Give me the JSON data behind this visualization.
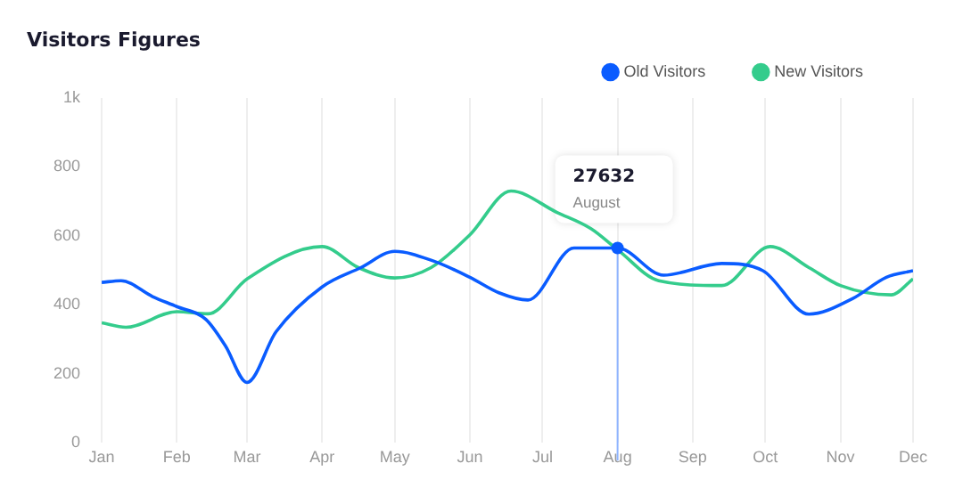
{
  "chart_data": {
    "type": "line",
    "title": "Visitors Figures",
    "xlim": [
      "--01-01",
      "--12-01"
    ],
    "xticks": [
      {
        "value": "--01-01",
        "label": "Jan"
      },
      {
        "value": "--02-01",
        "label": "Feb"
      },
      {
        "value": "--03-01",
        "label": "Mar"
      },
      {
        "value": "--04-01",
        "label": "Apr"
      },
      {
        "value": "--05-01",
        "label": "May"
      },
      {
        "value": "--06-01",
        "label": "Jun"
      },
      {
        "value": "--07-01",
        "label": "Jul"
      },
      {
        "value": "--08-01",
        "label": "Aug"
      },
      {
        "value": "--09-01",
        "label": "Sep"
      },
      {
        "value": "--10-01",
        "label": "Oct"
      },
      {
        "value": "--11-01",
        "label": "Nov"
      },
      {
        "value": "--12-01",
        "label": "Dec"
      }
    ],
    "ylim": [
      0,
      1000
    ],
    "yticks": [
      0,
      200,
      400,
      600,
      800,
      {
        "value": 1000,
        "label": "1k"
      }
    ],
    "series": [
      {
        "name": "Old Visitors",
        "color": "#0a5cff",
        "x": [
          "--01-01",
          "--01-09",
          "--01-22",
          "--02-01",
          "--02-13",
          "--02-21",
          "--03-01",
          "--03-13",
          "--04-01",
          "--04-17",
          "--05-01",
          "--05-17",
          "--06-01",
          "--06-13",
          "--06-25",
          "--07-14",
          "--08-01",
          "--08-20",
          "--09-13",
          "--09-30",
          "--10-19",
          "--11-06",
          "--11-20",
          "--12-01"
        ],
        "values": [
          465,
          470,
          424,
          395,
          358,
          282,
          175,
          322,
          452,
          508,
          555,
          527,
          480,
          435,
          414,
          565,
          565,
          486,
          520,
          499,
          373,
          418,
          480,
          499
        ]
      },
      {
        "name": "New Visitors",
        "color": "#34cc8c",
        "x": [
          "--01-01",
          "--01-11",
          "--02-01",
          "--02-14",
          "--03-01",
          "--04-01",
          "--04-16",
          "--05-01",
          "--05-16",
          "--06-01",
          "--06-18",
          "--07-07",
          "--07-21",
          "--08-01",
          "--08-18",
          "--09-13",
          "--10-03",
          "--10-19",
          "--11-01",
          "--11-22",
          "--12-01"
        ],
        "values": [
          348,
          335,
          380,
          374,
          475,
          569,
          508,
          478,
          508,
          603,
          730,
          668,
          621,
          560,
          470,
          456,
          569,
          508,
          456,
          429,
          475
        ]
      }
    ],
    "annotations": [
      "27632",
      "August"
    ],
    "ref_lines": [
      {
        "axis": "x",
        "value": "--08-01",
        "color": "#8fb4ff"
      }
    ],
    "grid": "x",
    "legend": "top right",
    "marker": "none",
    "line_style": "solid"
  }
}
